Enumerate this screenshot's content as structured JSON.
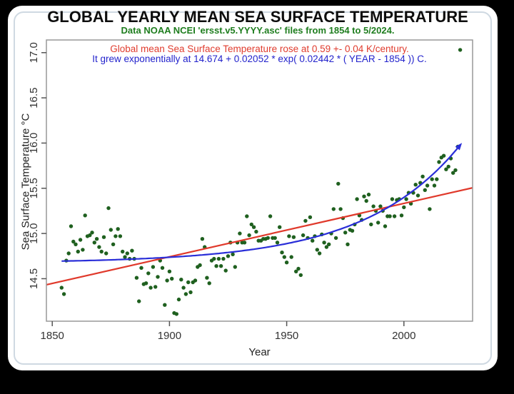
{
  "window": {
    "page_background": "#000000",
    "card_background": "#ffffff",
    "inner_border_color": "#cfd9e2"
  },
  "chart_data": {
    "type": "scatter",
    "title": "GLOBAL YEARLY MEAN SEA SURFACE TEMPERATURE",
    "subtitle": "Data NOAA NCEI 'ersst.v5.YYYY.asc' files from 1854 to 5/2024.",
    "xlabel": "Year",
    "ylabel": "Sea Surface Temperature °C",
    "xlim": [
      1847.5,
      2029.3
    ],
    "ylim": [
      14.03,
      17.14
    ],
    "x_ticks": [
      1850,
      1900,
      1950,
      2000
    ],
    "x_tick_labels": [
      "1850",
      "1900",
      "1950",
      "2000"
    ],
    "y_ticks": [
      14.5,
      15.0,
      15.5,
      16.0,
      16.5,
      17.0
    ],
    "y_tick_labels": [
      "14.5",
      "15.0",
      "15.5",
      "16.0",
      "16.5",
      "17.0"
    ],
    "grid": false,
    "legend": "none",
    "frame_color": "#999999",
    "tick_color": "#555555",
    "tick_label_color": "#333333",
    "annotations": [
      {
        "id": "linear-trend-note",
        "text": "Global mean Sea Surface Temperature rose at 0.59 +- 0.04 K/century.",
        "color": "#e03c2e"
      },
      {
        "id": "exponential-fit-note",
        "text": "It grew exponentially at 14.674 + 0.02052 * exp( 0.02442 * ( YEAR - 1854 )) C.",
        "color": "#2323cc"
      }
    ],
    "series": [
      {
        "name": "yearly-mean-sst-points",
        "type": "scatter",
        "color": "#1f601f",
        "marker_radius": 2.7,
        "points": [
          [
            1854,
            14.4
          ],
          [
            1855,
            14.33
          ],
          [
            1856,
            14.7
          ],
          [
            1857,
            14.78
          ],
          [
            1858,
            15.08
          ],
          [
            1859,
            14.91
          ],
          [
            1860,
            14.88
          ],
          [
            1861,
            14.8
          ],
          [
            1862,
            14.93
          ],
          [
            1863,
            14.82
          ],
          [
            1864,
            15.2
          ],
          [
            1865,
            14.97
          ],
          [
            1866,
            14.98
          ],
          [
            1867,
            15.01
          ],
          [
            1868,
            14.9
          ],
          [
            1869,
            14.94
          ],
          [
            1870,
            14.85
          ],
          [
            1871,
            14.8
          ],
          [
            1872,
            14.96
          ],
          [
            1873,
            14.78
          ],
          [
            1874,
            15.28
          ],
          [
            1875,
            15.04
          ],
          [
            1876,
            14.88
          ],
          [
            1877,
            14.97
          ],
          [
            1878,
            15.05
          ],
          [
            1879,
            14.97
          ],
          [
            1880,
            14.8
          ],
          [
            1881,
            14.74
          ],
          [
            1882,
            14.78
          ],
          [
            1883,
            14.72
          ],
          [
            1884,
            14.81
          ],
          [
            1885,
            14.72
          ],
          [
            1886,
            14.51
          ],
          [
            1887,
            14.25
          ],
          [
            1888,
            14.62
          ],
          [
            1889,
            14.44
          ],
          [
            1890,
            14.45
          ],
          [
            1891,
            14.56
          ],
          [
            1892,
            14.4
          ],
          [
            1893,
            14.63
          ],
          [
            1894,
            14.41
          ],
          [
            1895,
            14.52
          ],
          [
            1896,
            14.7
          ],
          [
            1897,
            14.62
          ],
          [
            1898,
            14.21
          ],
          [
            1899,
            14.48
          ],
          [
            1900,
            14.58
          ],
          [
            1901,
            14.5
          ],
          [
            1902,
            14.12
          ],
          [
            1903,
            14.11
          ],
          [
            1904,
            14.27
          ],
          [
            1905,
            14.49
          ],
          [
            1906,
            14.4
          ],
          [
            1907,
            14.33
          ],
          [
            1908,
            14.46
          ],
          [
            1909,
            14.35
          ],
          [
            1910,
            14.46
          ],
          [
            1911,
            14.48
          ],
          [
            1912,
            14.63
          ],
          [
            1913,
            14.65
          ],
          [
            1914,
            14.94
          ],
          [
            1915,
            14.85
          ],
          [
            1916,
            14.51
          ],
          [
            1917,
            14.45
          ],
          [
            1918,
            14.7
          ],
          [
            1919,
            14.72
          ],
          [
            1920,
            14.64
          ],
          [
            1921,
            14.72
          ],
          [
            1922,
            14.64
          ],
          [
            1923,
            14.72
          ],
          [
            1924,
            14.59
          ],
          [
            1925,
            14.75
          ],
          [
            1926,
            14.9
          ],
          [
            1927,
            14.77
          ],
          [
            1928,
            14.63
          ],
          [
            1929,
            14.9
          ],
          [
            1930,
            15.0
          ],
          [
            1931,
            14.9
          ],
          [
            1932,
            14.9
          ],
          [
            1933,
            15.19
          ],
          [
            1934,
            14.98
          ],
          [
            1935,
            15.1
          ],
          [
            1936,
            15.07
          ],
          [
            1937,
            15.02
          ],
          [
            1938,
            14.92
          ],
          [
            1939,
            14.92
          ],
          [
            1940,
            14.94
          ],
          [
            1941,
            14.94
          ],
          [
            1942,
            14.95
          ],
          [
            1943,
            15.19
          ],
          [
            1944,
            14.95
          ],
          [
            1945,
            14.95
          ],
          [
            1946,
            14.9
          ],
          [
            1947,
            15.07
          ],
          [
            1948,
            14.79
          ],
          [
            1949,
            14.74
          ],
          [
            1950,
            14.68
          ],
          [
            1951,
            14.97
          ],
          [
            1952,
            14.74
          ],
          [
            1953,
            14.96
          ],
          [
            1954,
            14.58
          ],
          [
            1955,
            14.61
          ],
          [
            1956,
            14.54
          ],
          [
            1957,
            14.98
          ],
          [
            1958,
            15.14
          ],
          [
            1959,
            14.95
          ],
          [
            1960,
            15.18
          ],
          [
            1961,
            14.92
          ],
          [
            1962,
            14.97
          ],
          [
            1963,
            14.82
          ],
          [
            1964,
            14.78
          ],
          [
            1965,
            14.99
          ],
          [
            1966,
            14.9
          ],
          [
            1967,
            14.85
          ],
          [
            1968,
            14.88
          ],
          [
            1969,
            15.0
          ],
          [
            1970,
            15.27
          ],
          [
            1971,
            14.95
          ],
          [
            1972,
            15.55
          ],
          [
            1973,
            15.27
          ],
          [
            1974,
            15.17
          ],
          [
            1975,
            15.01
          ],
          [
            1976,
            14.88
          ],
          [
            1977,
            15.04
          ],
          [
            1978,
            15.03
          ],
          [
            1979,
            15.1
          ],
          [
            1980,
            15.38
          ],
          [
            1981,
            15.2
          ],
          [
            1982,
            15.15
          ],
          [
            1983,
            15.41
          ],
          [
            1984,
            15.36
          ],
          [
            1985,
            15.43
          ],
          [
            1986,
            15.1
          ],
          [
            1987,
            15.3
          ],
          [
            1988,
            15.25
          ],
          [
            1989,
            15.12
          ],
          [
            1990,
            15.3
          ],
          [
            1991,
            15.25
          ],
          [
            1992,
            15.08
          ],
          [
            1993,
            15.19
          ],
          [
            1994,
            15.19
          ],
          [
            1995,
            15.38
          ],
          [
            1996,
            15.19
          ],
          [
            1997,
            15.37
          ],
          [
            1998,
            15.38
          ],
          [
            1999,
            15.2
          ],
          [
            2000,
            15.29
          ],
          [
            2001,
            15.38
          ],
          [
            2002,
            15.45
          ],
          [
            2003,
            15.33
          ],
          [
            2004,
            15.45
          ],
          [
            2005,
            15.54
          ],
          [
            2006,
            15.42
          ],
          [
            2007,
            15.56
          ],
          [
            2008,
            15.63
          ],
          [
            2009,
            15.48
          ],
          [
            2010,
            15.53
          ],
          [
            2011,
            15.27
          ],
          [
            2012,
            15.6
          ],
          [
            2013,
            15.53
          ],
          [
            2014,
            15.6
          ],
          [
            2015,
            15.79
          ],
          [
            2016,
            15.84
          ],
          [
            2017,
            15.86
          ],
          [
            2018,
            15.71
          ],
          [
            2019,
            15.74
          ],
          [
            2020,
            15.83
          ],
          [
            2021,
            15.67
          ],
          [
            2022,
            15.7
          ],
          [
            2023,
            15.96
          ],
          [
            2024,
            17.03
          ]
        ]
      },
      {
        "name": "linear-trend-line",
        "type": "line",
        "color": "#e0392b",
        "width": 2.2,
        "slope_k_per_century": 0.59,
        "slope_uncertainty": 0.04,
        "endpoints": [
          [
            1847.5,
            14.433
          ],
          [
            2029.3,
            15.505
          ]
        ]
      },
      {
        "name": "exponential-fit-curve",
        "type": "curve",
        "color": "#2a2ed8",
        "width": 2.2,
        "formula": "14.674 + 0.02052 * exp( 0.02442 * ( YEAR - 1854 ))",
        "params": {
          "a": 14.674,
          "b": 0.02052,
          "c": 0.02442,
          "x0": 1854
        },
        "x_range": [
          1854,
          2024
        ],
        "arrow_end": true
      }
    ]
  }
}
